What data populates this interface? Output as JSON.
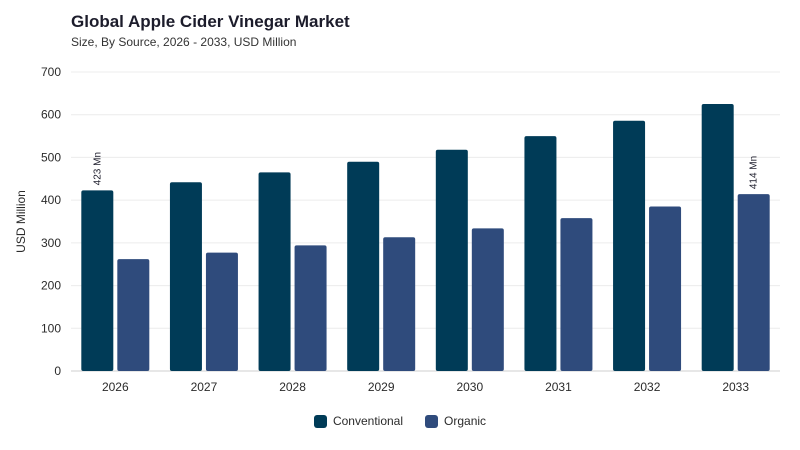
{
  "title": "Global Apple Cider Vinegar Market",
  "subtitle": "Size, By Source, 2026 - 2033, USD Million",
  "colors": {
    "conventional": "#003b57",
    "organic": "#2f4b7c",
    "grid": "#ececec",
    "axis": "#cfcfcf"
  },
  "chart_data": {
    "type": "bar",
    "categories": [
      "2026",
      "2027",
      "2028",
      "2029",
      "2030",
      "2031",
      "2032",
      "2033"
    ],
    "series": [
      {
        "name": "Conventional",
        "values": [
          423,
          442,
          465,
          490,
          518,
          550,
          586,
          625
        ]
      },
      {
        "name": "Organic",
        "values": [
          262,
          277,
          294,
          313,
          334,
          358,
          385,
          414
        ]
      }
    ],
    "ylabel": "USD Million",
    "ylim": [
      0,
      700
    ],
    "yticks": [
      "0",
      "100",
      "200",
      "300",
      "400",
      "500",
      "600",
      "700"
    ],
    "annotations": [
      {
        "category": "2026",
        "series": "Conventional",
        "text": "423 Mn"
      },
      {
        "category": "2033",
        "series": "Organic",
        "text": "414 Mn"
      }
    ],
    "grid": true,
    "legend": "bottom-center"
  }
}
